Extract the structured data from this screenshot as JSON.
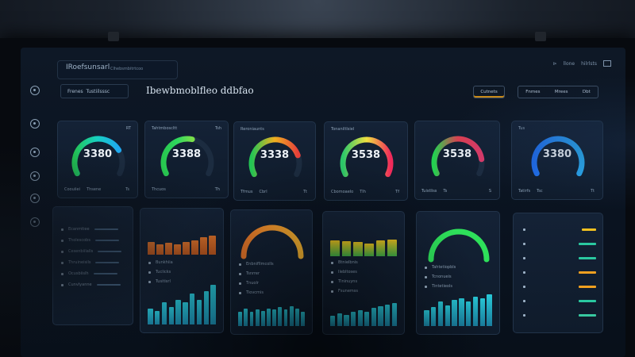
{
  "app": {
    "title": "IRoefsunsarl",
    "subtitle": "Clhebsmbitrtcoo",
    "window_buttons": [
      "⊳",
      "llone",
      "hilrlsts"
    ]
  },
  "filter": {
    "label": "Frenes",
    "value": "Tustiilsssc"
  },
  "page_title": "Ibewbmoblfleo ddbfao",
  "buttons": {
    "amber": "Cutnets",
    "period_parts": [
      "Fnmes",
      "Mrees",
      "Dbt"
    ]
  },
  "sidebar_icons": [
    "home-icon",
    "grid-icon",
    "users-icon",
    "bell-icon",
    "settings-icon",
    "info-icon"
  ],
  "gauges": [
    {
      "value": "3380",
      "label": "",
      "meta": "RT",
      "foot": "Coouiiei",
      "foot_mid": "Thsene",
      "foot_r": "Ts",
      "fill": 0.75,
      "colors": [
        "#23c454",
        "#17d0c0",
        "#1fa8f0"
      ]
    },
    {
      "value": "3388",
      "label": "Tahtmboscltt",
      "meta": "Tsh",
      "foot": "Thcuos",
      "foot_mid": "",
      "foot_r": "Th",
      "fill": 0.55,
      "colors": [
        "#28c850",
        "#2fd85e",
        "#7ae04a"
      ]
    },
    {
      "value": "3338",
      "label": "Reroniaunts",
      "meta": "",
      "foot": "Tfmus",
      "foot_mid": "Cbrl",
      "foot_r": "Tt",
      "fill": 0.8,
      "colors": [
        "#23c454",
        "#f0b020",
        "#e6403a"
      ]
    },
    {
      "value": "3538",
      "label": "Tonaniltlsiel",
      "meta": "",
      "foot": "Cbomoaelo",
      "foot_mid": "Tlh",
      "foot_r": "Tf",
      "fill": 1.0,
      "colors": [
        "#2cc86a",
        "#f0e040",
        "#f02a5a"
      ]
    },
    {
      "value": "3538",
      "label": "",
      "meta": "",
      "foot": "Tuistliss",
      "foot_mid": "Ts",
      "foot_r": "S",
      "fill": 0.85,
      "colors": [
        "#23d050",
        "#e04050",
        "#e03a6a"
      ]
    },
    {
      "value": "3380",
      "label": "Tus",
      "meta": "",
      "foot": "Tatirfs",
      "foot_mid": "Tsc",
      "foot_r": "Tt",
      "fill": 1.0,
      "colors": [
        "#1f6df0",
        "#2890f4",
        "#2ab0f8"
      ]
    }
  ],
  "lower": {
    "list_card": {
      "rows": [
        "Ecanmtiee",
        "Tholescobs",
        "Cesenbiilalls",
        "Thruineisils",
        "Ocusbiislh",
        "Cunvlyanne"
      ]
    },
    "bar_card_1": {
      "top_values": [
        0.55,
        0.45,
        0.5,
        0.45,
        0.55,
        0.6,
        0.75,
        0.8
      ],
      "rows": [
        "Bunkhiia",
        "Tuclicks",
        "Tusitisrl"
      ],
      "bottom_values": [
        0.35,
        0.3,
        0.5,
        0.4,
        0.55,
        0.5,
        0.7,
        0.55,
        0.75,
        0.9
      ]
    },
    "arc_card": {
      "rows": [
        "Enbnifllmcolls",
        "Tsnrrer",
        "Tnuolr",
        "Tiovcmis"
      ],
      "bottom_values": [
        0.6,
        0.75,
        0.6,
        0.7,
        0.65,
        0.75,
        0.7,
        0.8,
        0.7,
        0.85,
        0.75,
        0.6
      ]
    },
    "bar_card_2": {
      "top_values": [
        0.9,
        0.85,
        0.8,
        0.75,
        0.9,
        0.95
      ],
      "rows": [
        "Btnielbnis",
        "Ilebltoses",
        "Tlninuyns",
        "Fsunemss"
      ],
      "bottom_values": [
        0.35,
        0.45,
        0.4,
        0.5,
        0.55,
        0.5,
        0.65,
        0.7,
        0.75,
        0.8
      ]
    },
    "arc_card_2": {
      "rows": [
        "Tahtetiopbls",
        "Tcnonueis",
        "Tintetieols"
      ],
      "bottom_values": [
        0.45,
        0.55,
        0.7,
        0.6,
        0.75,
        0.8,
        0.7,
        0.85,
        0.8,
        0.9
      ]
    },
    "kpi_card": {
      "rows": [
        "",
        "",
        "",
        "",
        "",
        "",
        ""
      ],
      "row_colors": [
        "#f0c020",
        "#2ac8a0",
        "#2ac8a0",
        "#f0a020",
        "#f0a020",
        "#2ac8a0",
        "#38c8a0"
      ]
    }
  },
  "colors": {
    "accent": "#1fa8f0",
    "teal": "#24b8c8",
    "orange": "#f07a2a"
  }
}
